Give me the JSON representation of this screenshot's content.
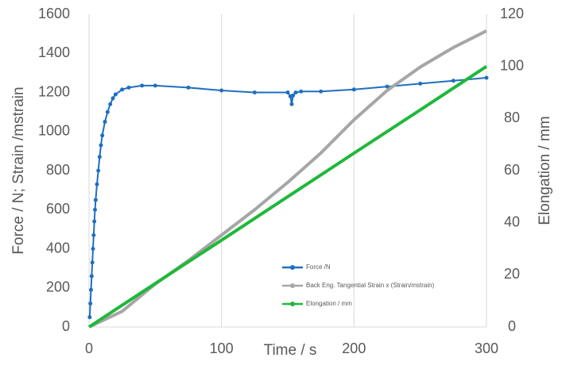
{
  "chart_data": {
    "type": "line",
    "xlabel": "Time / s",
    "ylabel": "Force / N; Strain /mstrain",
    "y2label": "Elongation / mm",
    "xlim": [
      0,
      300
    ],
    "xticks": [
      0,
      100,
      200,
      300
    ],
    "ylim": [
      0,
      1600
    ],
    "yticks": [
      0,
      200,
      400,
      600,
      800,
      1000,
      1200,
      1400,
      1600
    ],
    "y2lim": [
      0,
      120
    ],
    "y2ticks": [
      0,
      20,
      40,
      60,
      80,
      100,
      120
    ],
    "grid": true,
    "legend": "bottom",
    "series": [
      {
        "name": "Force /N",
        "color": "#1f6fc0",
        "markers": true,
        "x": [
          0.5,
          1,
          1.5,
          2,
          2.5,
          3,
          3.5,
          4,
          4.5,
          5,
          6,
          7,
          8,
          9,
          10,
          12,
          14,
          16,
          18,
          20,
          25,
          30,
          40,
          50,
          75,
          100,
          125,
          150,
          152,
          153,
          154,
          156,
          160,
          175,
          200,
          225,
          250,
          275,
          300
        ],
        "values": [
          50,
          120,
          190,
          260,
          330,
          400,
          470,
          540,
          600,
          650,
          730,
          800,
          870,
          930,
          980,
          1050,
          1100,
          1140,
          1170,
          1190,
          1215,
          1225,
          1235,
          1235,
          1225,
          1210,
          1200,
          1200,
          1180,
          1140,
          1185,
          1200,
          1205,
          1205,
          1215,
          1230,
          1245,
          1260,
          1275
        ]
      },
      {
        "name": "Back Eng. Tangential Strain x (Strain/mstrain)",
        "color": "#a6a6a6",
        "markers": false,
        "x": [
          0,
          25,
          50,
          75,
          100,
          125,
          150,
          175,
          200,
          225,
          250,
          275,
          300
        ],
        "values": [
          0,
          80,
          220,
          340,
          470,
          600,
          740,
          890,
          1060,
          1210,
          1330,
          1430,
          1515
        ]
      },
      {
        "name": "Elongation / mm",
        "color": "#1fb83a",
        "markers": false,
        "axis": "y2",
        "x": [
          0,
          50,
          100,
          150,
          200,
          250,
          300
        ],
        "values": [
          0,
          16.7,
          33.3,
          50,
          66.7,
          83.3,
          100
        ]
      }
    ]
  }
}
